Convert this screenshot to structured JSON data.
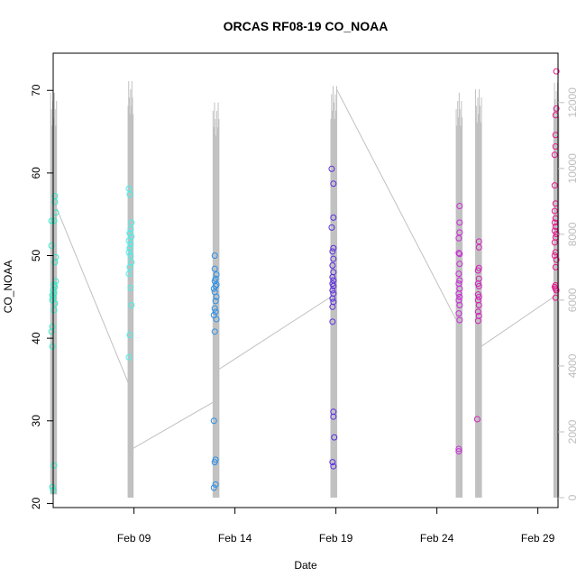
{
  "chart_data": {
    "type": "scatter",
    "title": "ORCAS RF08-19 CO_NOAA",
    "xlabel": "Date",
    "ylabel": "CO_NOAA",
    "x_range": [
      "2016-02-05",
      "2016-03-01"
    ],
    "y_range": [
      19.5,
      74.5
    ],
    "y_ticks": [
      20,
      30,
      40,
      50,
      60,
      70
    ],
    "x_ticks": [
      {
        "date": "2016-02-09",
        "label": "Feb 09"
      },
      {
        "date": "2016-02-14",
        "label": "Feb 14"
      },
      {
        "date": "2016-02-19",
        "label": "Feb 19"
      },
      {
        "date": "2016-02-24",
        "label": "Feb 24"
      },
      {
        "date": "2016-02-29",
        "label": "Feb 29"
      }
    ],
    "y2_range": [
      -300,
      13500
    ],
    "y2_ticks": [
      0,
      2000,
      4000,
      6000,
      8000,
      10000,
      12000
    ],
    "y2_color": "#c0c0c0",
    "series": [
      {
        "color": "#33e8c4",
        "values": [
          [
            "2016-02-05 02:00",
            57.2
          ],
          [
            "2016-02-05 02:00",
            56.5
          ],
          [
            "2016-02-05 03:00",
            55.2
          ],
          [
            "2016-02-04 22:00",
            54.2
          ],
          [
            "2016-02-05 01:00",
            54.2
          ],
          [
            "2016-02-04 22:00",
            51.2
          ],
          [
            "2016-02-05 03:00",
            49.8
          ],
          [
            "2016-02-05 02:00",
            49.2
          ],
          [
            "2016-02-05 03:00",
            46.9
          ],
          [
            "2016-02-05 01:00",
            46.5
          ],
          [
            "2016-02-05 02:00",
            46.2
          ],
          [
            "2016-02-05 00:00",
            45.8
          ],
          [
            "2016-02-05 01:00",
            45.5
          ],
          [
            "2016-02-04 23:00",
            45.2
          ],
          [
            "2016-02-05 00:00",
            44.9
          ],
          [
            "2016-02-04 23:00",
            44.6
          ],
          [
            "2016-02-05 02:00",
            44.2
          ],
          [
            "2016-02-05 01:00",
            43.4
          ],
          [
            "2016-02-04 23:00",
            41.4
          ],
          [
            "2016-02-04 22:00",
            40.8
          ],
          [
            "2016-02-04 23:00",
            39.0
          ],
          [
            "2016-02-05 01:00",
            24.6
          ],
          [
            "2016-02-04 23:00",
            22.0
          ],
          [
            "2016-02-05 00:00",
            21.6
          ]
        ]
      },
      {
        "color": "#44f0ec",
        "values": [
          [
            "2016-02-08 18:00",
            58.1
          ],
          [
            "2016-02-08 19:00",
            57.4
          ],
          [
            "2016-02-08 21:00",
            54.0
          ],
          [
            "2016-02-08 20:00",
            53.2
          ],
          [
            "2016-02-08 19:00",
            52.7
          ],
          [
            "2016-02-08 21:00",
            52.3
          ],
          [
            "2016-02-08 18:00",
            51.8
          ],
          [
            "2016-02-08 20:00",
            51.4
          ],
          [
            "2016-02-08 19:00",
            50.9
          ],
          [
            "2016-02-08 18:00",
            50.4
          ],
          [
            "2016-02-08 20:00",
            50.0
          ],
          [
            "2016-02-08 21:00",
            49.2
          ],
          [
            "2016-02-08 19:00",
            48.6
          ],
          [
            "2016-02-08 18:00",
            47.8
          ],
          [
            "2016-02-08 20:00",
            46.1
          ],
          [
            "2016-02-08 21:00",
            44.0
          ],
          [
            "2016-02-08 19:00",
            40.4
          ],
          [
            "2016-02-08 18:00",
            37.7
          ]
        ]
      },
      {
        "color": "#2b8fe6",
        "values": [
          [
            "2016-02-13 00:00",
            50.0
          ],
          [
            "2016-02-13 00:00",
            48.4
          ],
          [
            "2016-02-13 02:00",
            47.7
          ],
          [
            "2016-02-13 01:00",
            47.2
          ],
          [
            "2016-02-13 00:00",
            46.9
          ],
          [
            "2016-02-13 02:00",
            46.5
          ],
          [
            "2016-02-13 01:00",
            46.3
          ],
          [
            "2016-02-12 23:00",
            46.0
          ],
          [
            "2016-02-13 00:00",
            45.6
          ],
          [
            "2016-02-13 02:00",
            45.0
          ],
          [
            "2016-02-13 01:00",
            44.5
          ],
          [
            "2016-02-13 00:00",
            43.6
          ],
          [
            "2016-02-13 01:00",
            43.2
          ],
          [
            "2016-02-12 23:00",
            42.8
          ],
          [
            "2016-02-13 02:00",
            42.3
          ],
          [
            "2016-02-13 00:00",
            40.8
          ],
          [
            "2016-02-12 23:00",
            30.0
          ],
          [
            "2016-02-13 01:00",
            25.3
          ],
          [
            "2016-02-13 00:00",
            25.0
          ],
          [
            "2016-02-13 01:00",
            22.3
          ],
          [
            "2016-02-12 23:00",
            21.9
          ]
        ]
      },
      {
        "color": "#5a2de0",
        "values": [
          [
            "2016-02-18 19:00",
            60.5
          ],
          [
            "2016-02-18 21:00",
            58.7
          ],
          [
            "2016-02-18 21:00",
            54.6
          ],
          [
            "2016-02-18 19:00",
            53.4
          ],
          [
            "2016-02-18 21:00",
            50.9
          ],
          [
            "2016-02-18 20:00",
            50.5
          ],
          [
            "2016-02-18 21:00",
            49.6
          ],
          [
            "2016-02-18 20:00",
            48.8
          ],
          [
            "2016-02-18 21:00",
            48.0
          ],
          [
            "2016-02-18 20:00",
            47.4
          ],
          [
            "2016-02-18 21:00",
            47.0
          ],
          [
            "2016-02-18 20:00",
            46.6
          ],
          [
            "2016-02-18 21:00",
            46.3
          ],
          [
            "2016-02-18 20:00",
            45.8
          ],
          [
            "2016-02-18 21:00",
            45.4
          ],
          [
            "2016-02-18 20:00",
            44.8
          ],
          [
            "2016-02-18 21:00",
            44.4
          ],
          [
            "2016-02-18 20:00",
            43.8
          ],
          [
            "2016-02-18 20:00",
            42.0
          ],
          [
            "2016-02-18 21:00",
            31.1
          ],
          [
            "2016-02-18 21:00",
            30.5
          ],
          [
            "2016-02-18 22:00",
            28.0
          ],
          [
            "2016-02-18 20:00",
            25.0
          ],
          [
            "2016-02-18 21:00",
            24.5
          ]
        ]
      },
      {
        "color": "#c82ad6",
        "values": [
          [
            "2016-02-25 03:00",
            56.0
          ],
          [
            "2016-02-25 03:00",
            54.0
          ],
          [
            "2016-02-25 03:00",
            52.8
          ],
          [
            "2016-02-25 02:00",
            52.1
          ],
          [
            "2016-02-25 02:00",
            50.3
          ],
          [
            "2016-02-25 03:00",
            50.2
          ],
          [
            "2016-02-25 03:00",
            49.0
          ],
          [
            "2016-02-25 02:00",
            47.8
          ],
          [
            "2016-02-25 03:00",
            47.0
          ],
          [
            "2016-02-25 02:00",
            46.6
          ],
          [
            "2016-02-25 03:00",
            46.0
          ],
          [
            "2016-02-25 02:00",
            45.4
          ],
          [
            "2016-02-25 03:00",
            45.0
          ],
          [
            "2016-02-25 02:00",
            44.6
          ],
          [
            "2016-02-25 03:00",
            44.0
          ],
          [
            "2016-02-25 02:00",
            43.0
          ],
          [
            "2016-02-25 03:00",
            42.2
          ],
          [
            "2016-02-25 02:00",
            26.6
          ],
          [
            "2016-02-25 02:00",
            26.3
          ]
        ]
      },
      {
        "color": "#d020b8",
        "values": [
          [
            "2016-02-26 02:00",
            51.7
          ],
          [
            "2016-02-26 02:00",
            51.0
          ],
          [
            "2016-02-26 02:00",
            48.5
          ],
          [
            "2016-02-26 01:00",
            48.2
          ],
          [
            "2016-02-26 02:00",
            47.2
          ],
          [
            "2016-02-26 01:00",
            46.6
          ],
          [
            "2016-02-26 02:00",
            46.3
          ],
          [
            "2016-02-26 01:00",
            45.3
          ],
          [
            "2016-02-26 02:00",
            45.0
          ],
          [
            "2016-02-26 01:00",
            44.6
          ],
          [
            "2016-02-26 02:00",
            44.0
          ],
          [
            "2016-02-26 01:00",
            43.2
          ],
          [
            "2016-02-26 02:00",
            42.7
          ],
          [
            "2016-02-26 01:00",
            42.1
          ],
          [
            "2016-02-26 00:00",
            30.2
          ]
        ]
      },
      {
        "color": "#e8168c",
        "values": [
          [
            "2016-02-29 22:00",
            72.3
          ],
          [
            "2016-02-29 22:00",
            67.8
          ],
          [
            "2016-02-29 21:00",
            67.0
          ],
          [
            "2016-02-29 21:00",
            64.6
          ],
          [
            "2016-02-29 21:00",
            63.2
          ],
          [
            "2016-02-29 20:00",
            62.2
          ],
          [
            "2016-02-29 20:00",
            58.5
          ],
          [
            "2016-02-29 21:00",
            56.3
          ],
          [
            "2016-02-29 20:00",
            55.4
          ],
          [
            "2016-02-29 21:00",
            54.5
          ],
          [
            "2016-02-29 20:00",
            54.0
          ],
          [
            "2016-02-29 21:00",
            53.5
          ],
          [
            "2016-02-29 20:00",
            53.0
          ],
          [
            "2016-02-29 22:00",
            52.6
          ],
          [
            "2016-02-29 21:00",
            52.2
          ],
          [
            "2016-02-29 20:00",
            51.6
          ],
          [
            "2016-02-29 21:00",
            50.4
          ],
          [
            "2016-02-29 20:00",
            50.0
          ],
          [
            "2016-02-29 22:00",
            49.5
          ],
          [
            "2016-02-29 21:00",
            48.6
          ],
          [
            "2016-02-29 21:00",
            46.4
          ],
          [
            "2016-02-29 20:00",
            46.2
          ],
          [
            "2016-02-29 21:00",
            46.0
          ],
          [
            "2016-02-29 22:00",
            45.8
          ],
          [
            "2016-02-29 21:00",
            44.9
          ]
        ]
      }
    ],
    "overlay_y2": {
      "color": "#c0c0c0",
      "flights": [
        {
          "x0": "2016-02-04 21:00",
          "x1": "2016-02-05 04:00",
          "min": 100,
          "max": 12300
        },
        {
          "x0": "2016-02-08 17:00",
          "x1": "2016-02-08 23:00",
          "min": 0,
          "max": 12650
        },
        {
          "x0": "2016-02-12 22:00",
          "x1": "2016-02-13 05:00",
          "min": 0,
          "max": 12000
        },
        {
          "x0": "2016-02-18 18:00",
          "x1": "2016-02-19 01:00",
          "min": 0,
          "max": 12500
        },
        {
          "x0": "2016-02-24 23:00",
          "x1": "2016-02-25 06:00",
          "min": 0,
          "max": 12300
        },
        {
          "x0": "2016-02-25 22:00",
          "x1": "2016-02-26 05:00",
          "min": 0,
          "max": 12400
        },
        {
          "x0": "2016-02-29 19:00",
          "x1": "2016-03-01 01:00",
          "min": 0,
          "max": 12600
        }
      ],
      "connectors": [
        [
          "2016-02-05 04:00",
          8800,
          "2016-02-08 17:00",
          3500
        ],
        [
          "2016-02-08 23:00",
          1500,
          "2016-02-12 22:00",
          2900
        ],
        [
          "2016-02-13 05:00",
          3900,
          "2016-02-18 18:00",
          6100
        ],
        [
          "2016-02-19 01:00",
          12400,
          "2016-02-24 23:00",
          5400
        ],
        [
          "2016-02-26 05:00",
          4600,
          "2016-02-29 19:00",
          6100
        ]
      ]
    }
  }
}
